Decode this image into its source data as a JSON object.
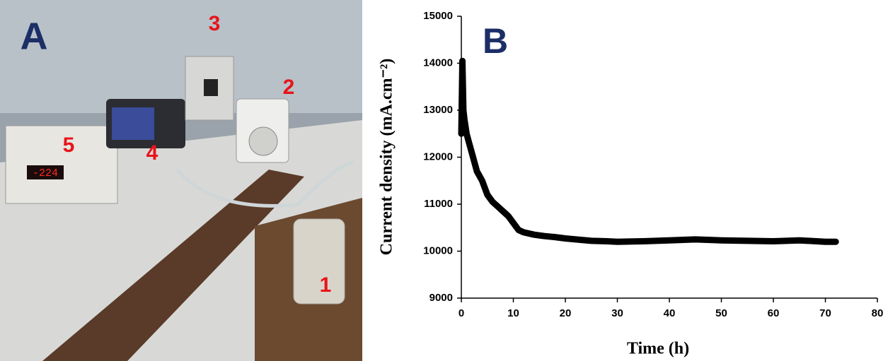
{
  "photo": {
    "panel_label": "A",
    "labels": [
      "1",
      "2",
      "3",
      "4",
      "5"
    ],
    "display": "-224"
  },
  "chart_data": {
    "type": "line",
    "panel_label": "B",
    "x_label": "Time (h)",
    "y_label": "Current density (mA.cm⁻²)",
    "x": [
      0,
      0.2,
      0.4,
      0.6,
      1,
      1.5,
      2,
      3,
      4,
      5,
      6,
      7,
      8,
      9,
      10,
      11,
      12,
      14,
      16,
      18,
      20,
      22,
      25,
      28,
      30,
      35,
      40,
      45,
      50,
      55,
      60,
      65,
      70,
      72
    ],
    "values": [
      12500,
      14050,
      13000,
      12800,
      12500,
      12300,
      12100,
      11700,
      11500,
      11200,
      11050,
      10950,
      10850,
      10750,
      10600,
      10450,
      10400,
      10350,
      10320,
      10300,
      10270,
      10250,
      10220,
      10210,
      10200,
      10210,
      10230,
      10250,
      10230,
      10220,
      10210,
      10230,
      10200,
      10200
    ],
    "color": "#000000",
    "xlim": [
      0,
      80
    ],
    "xticks": [
      0,
      10,
      20,
      30,
      40,
      50,
      60,
      70,
      80
    ],
    "ylim": [
      9000,
      15000
    ],
    "yticks": [
      9000,
      10000,
      11000,
      12000,
      13000,
      14000,
      15000
    ]
  }
}
